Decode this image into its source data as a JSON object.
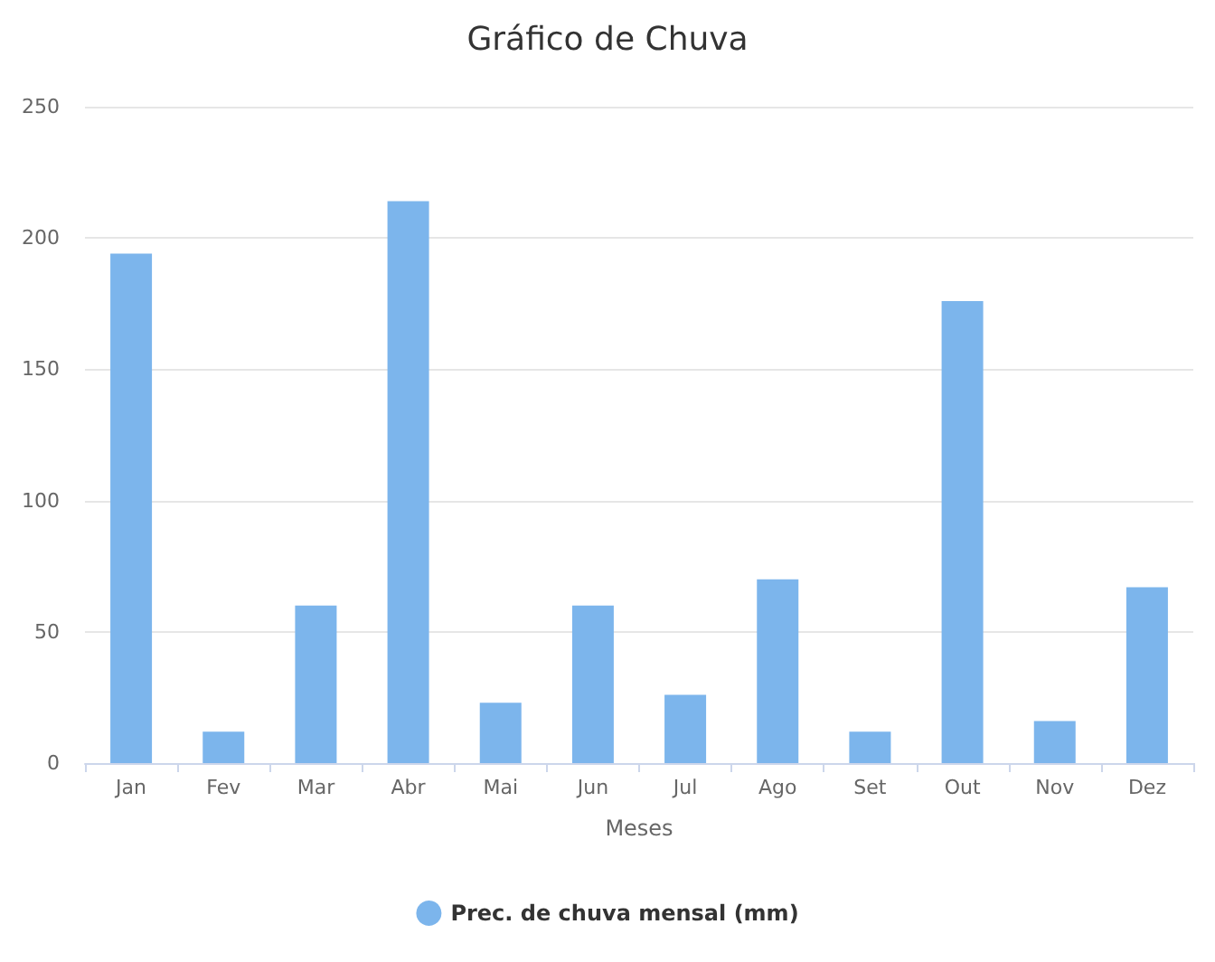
{
  "chart_data": {
    "type": "bar",
    "title": "Gráfico de Chuva",
    "xlabel": "Meses",
    "categories": [
      "Jan",
      "Fev",
      "Mar",
      "Abr",
      "Mai",
      "Jun",
      "Jul",
      "Ago",
      "Set",
      "Out",
      "Nov",
      "Dez"
    ],
    "series": [
      {
        "name": "Prec. de chuva mensal (mm)",
        "color": "#7cb5ec",
        "values": [
          194,
          12,
          60,
          214,
          23,
          60,
          26,
          70,
          12,
          176,
          16,
          67
        ]
      }
    ],
    "ylim": [
      0,
      250
    ],
    "yticks": [
      0,
      50,
      100,
      150,
      200,
      250
    ],
    "grid": "y",
    "legend": "bottom"
  }
}
